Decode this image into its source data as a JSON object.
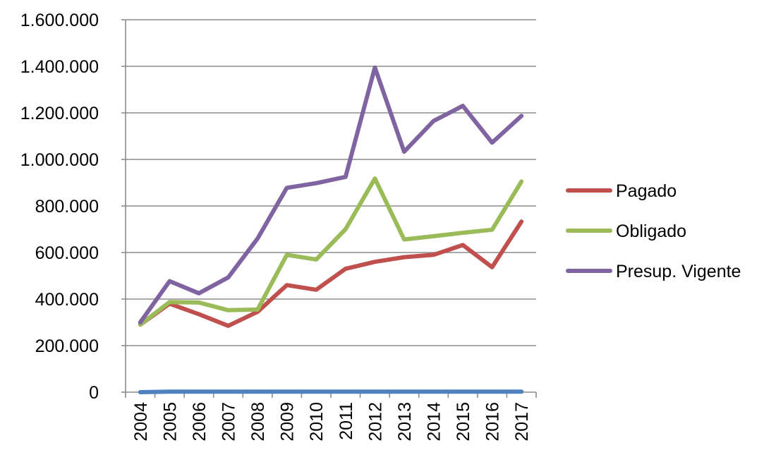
{
  "chart_data": {
    "type": "line",
    "categories": [
      "2004",
      "2005",
      "2006",
      "2007",
      "2008",
      "2009",
      "2010",
      "2011",
      "2012",
      "2013",
      "2014",
      "2015",
      "2016",
      "2017"
    ],
    "series": [
      {
        "name": "",
        "color": "#4f81bd",
        "values": [
          0,
          2,
          2,
          2,
          2,
          2,
          2,
          2,
          2,
          2,
          2,
          2,
          2,
          2
        ],
        "in_legend": false
      },
      {
        "name": "Pagado",
        "color": "#c0504d",
        "values": [
          290,
          380,
          335,
          285,
          345,
          460,
          440,
          530,
          560,
          580,
          590,
          632,
          537,
          733
        ],
        "in_legend": true
      },
      {
        "name": "Obligado",
        "color": "#9bbb59",
        "values": [
          290,
          387,
          385,
          352,
          355,
          590,
          570,
          700,
          918,
          656,
          670,
          685,
          698,
          905
        ],
        "in_legend": true
      },
      {
        "name": "Presup. Vigente",
        "color": "#8064a2",
        "values": [
          300,
          477,
          425,
          493,
          660,
          878,
          898,
          925,
          1395,
          1033,
          1165,
          1230,
          1072,
          1187
        ],
        "in_legend": true
      }
    ],
    "y_ticks": [
      {
        "value": 0,
        "label": "0"
      },
      {
        "value": 200,
        "label": "200.000"
      },
      {
        "value": 400,
        "label": "400.000"
      },
      {
        "value": 600,
        "label": "600.000"
      },
      {
        "value": 800,
        "label": "800.000"
      },
      {
        "value": 1000,
        "label": "1.000.000"
      },
      {
        "value": 1200,
        "label": "1.200.000"
      },
      {
        "value": 1400,
        "label": "1.400.000"
      },
      {
        "value": 1600,
        "label": "1.600.000"
      }
    ],
    "ylim": [
      0,
      1600
    ],
    "title": "",
    "xlabel": "",
    "ylabel": "",
    "grid": "horizontal",
    "legend_position": "right"
  }
}
